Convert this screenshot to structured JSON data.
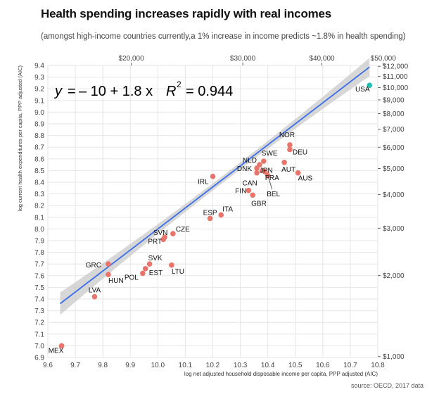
{
  "title": "Health spending increases rapidly with real incomes",
  "subtitle": "(amongst high-income countries currently,a 1% increase in income predicts ~1.8% in health spending)",
  "source": "source: OECD, 2017 data",
  "chart_data": {
    "type": "scatter",
    "title": "Health spending increases rapidly with real incomes",
    "xlabel": "log net adjusted household disposable income per capita, PPP adjusted (AIC)",
    "ylabel": "log current health expenditures per capita, PPP adjusted (AIC)",
    "xlim": [
      9.6,
      10.8
    ],
    "ylim": [
      6.9,
      9.4
    ],
    "x_ticks": [
      9.6,
      9.7,
      9.8,
      9.9,
      10.0,
      10.1,
      10.2,
      10.3,
      10.4,
      10.5,
      10.6,
      10.7,
      10.8
    ],
    "y_ticks": [
      6.9,
      7.0,
      7.1,
      7.2,
      7.3,
      7.4,
      7.5,
      7.6,
      7.7,
      7.8,
      7.9,
      8.0,
      8.1,
      8.2,
      8.3,
      8.4,
      8.5,
      8.6,
      8.7,
      8.8,
      8.9,
      9.0,
      9.1,
      9.2,
      9.3,
      9.4
    ],
    "top_axis": [
      {
        "value": 20000,
        "label": "$20,000"
      },
      {
        "value": 30000,
        "label": "$30,000"
      },
      {
        "value": 40000,
        "label": "$40,000"
      },
      {
        "value": 50000,
        "label": "$50,000"
      }
    ],
    "right_axis": [
      {
        "value": 1000,
        "label": "$1,000"
      },
      {
        "value": 2000,
        "label": "$2,000"
      },
      {
        "value": 3000,
        "label": "$3,000"
      },
      {
        "value": 4000,
        "label": "$4,000"
      },
      {
        "value": 5000,
        "label": "$5,000"
      },
      {
        "value": 6000,
        "label": "$6,000"
      },
      {
        "value": 7000,
        "label": "$7,000"
      },
      {
        "value": 8000,
        "label": "$8,000"
      },
      {
        "value": 9000,
        "label": "$9,000"
      },
      {
        "value": 10000,
        "label": "$10,000"
      },
      {
        "value": 11000,
        "label": "$11,000"
      },
      {
        "value": 12000,
        "label": "$12,000"
      }
    ],
    "points": [
      {
        "label": "MEX",
        "x": 9.65,
        "y": 7.0
      },
      {
        "label": "LVA",
        "x": 9.77,
        "y": 7.42
      },
      {
        "label": "GRC",
        "x": 9.82,
        "y": 7.7
      },
      {
        "label": "HUN",
        "x": 9.82,
        "y": 7.61
      },
      {
        "label": "POL",
        "x": 9.945,
        "y": 7.62
      },
      {
        "label": "EST",
        "x": 9.955,
        "y": 7.66
      },
      {
        "label": "SVK",
        "x": 9.97,
        "y": 7.7
      },
      {
        "label": "LTU",
        "x": 10.05,
        "y": 7.69
      },
      {
        "label": "PRT",
        "x": 10.02,
        "y": 7.91
      },
      {
        "label": "SVN",
        "x": 10.025,
        "y": 7.93
      },
      {
        "label": "CZE",
        "x": 10.055,
        "y": 7.96
      },
      {
        "label": "ESP",
        "x": 10.19,
        "y": 8.09
      },
      {
        "label": "ITA",
        "x": 10.23,
        "y": 8.12
      },
      {
        "label": "IRL",
        "x": 10.2,
        "y": 8.45
      },
      {
        "label": "FIN",
        "x": 10.33,
        "y": 8.33
      },
      {
        "label": "GBR",
        "x": 10.345,
        "y": 8.29
      },
      {
        "label": "CAN",
        "x": 10.36,
        "y": 8.48
      },
      {
        "label": "DNK",
        "x": 10.36,
        "y": 8.52
      },
      {
        "label": "NLD",
        "x": 10.37,
        "y": 8.55
      },
      {
        "label": "SWE",
        "x": 10.385,
        "y": 8.58
      },
      {
        "label": "JPN",
        "x": 10.38,
        "y": 8.5
      },
      {
        "label": "FRA",
        "x": 10.39,
        "y": 8.49
      },
      {
        "label": "BEL",
        "x": 10.4,
        "y": 8.46
      },
      {
        "label": "AUT",
        "x": 10.46,
        "y": 8.57
      },
      {
        "label": "DEU",
        "x": 10.48,
        "y": 8.68
      },
      {
        "label": "NOR",
        "x": 10.48,
        "y": 8.72
      },
      {
        "label": "AUS",
        "x": 10.51,
        "y": 8.48
      },
      {
        "label": "USA",
        "x": 10.77,
        "y": 9.23,
        "highlight": true
      }
    ],
    "fit": {
      "intercept": -10.0,
      "slope": 1.8,
      "x_range": [
        9.645,
        10.77
      ]
    },
    "equation": {
      "lhs": "y",
      "eq": "=",
      "rest": "– 10 + 1.8 x",
      "r2_label": "R",
      "r2_exp": "2",
      "r2_value": "= 0.944"
    },
    "colors": {
      "point": "#e8746c",
      "highlight": "#1fbfb5",
      "fit_line": "#3a6ee8",
      "ribbon": "#c9c9c9",
      "grid": "#e6e6e6"
    }
  }
}
